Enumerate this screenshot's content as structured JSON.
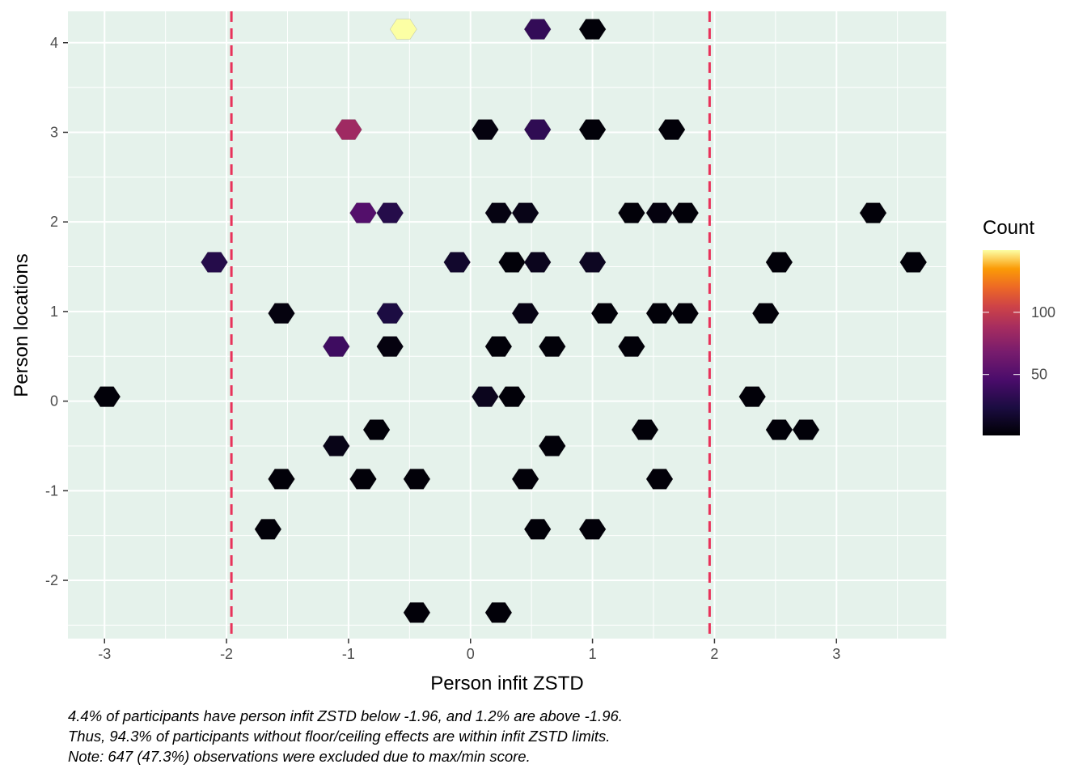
{
  "chart_data": {
    "type": "hexbin",
    "xlabel": "Person infit ZSTD",
    "ylabel": "Person locations",
    "xlim": [
      -3.3,
      3.9
    ],
    "ylim": [
      -2.65,
      4.35
    ],
    "x_ticks": [
      -3,
      -2,
      -1,
      0,
      1,
      2,
      3
    ],
    "y_ticks": [
      -2,
      -1,
      0,
      1,
      2,
      3,
      4
    ],
    "grid": true,
    "background_color": "#e5f2eb",
    "reference_lines": [
      {
        "x": -1.96,
        "style": "dashed",
        "color": "#e8325a"
      },
      {
        "x": 1.96,
        "style": "dashed",
        "color": "#e8325a"
      }
    ],
    "legend": {
      "title": "Count",
      "position": "right",
      "ticks": [
        50,
        100
      ],
      "range": [
        1,
        150
      ],
      "colormap": "inferno"
    },
    "points": [
      {
        "x": -0.55,
        "y": 4.15,
        "count": 150
      },
      {
        "x": 0.55,
        "y": 4.15,
        "count": 35
      },
      {
        "x": 1.0,
        "y": 4.15,
        "count": 3
      },
      {
        "x": -1.0,
        "y": 3.03,
        "count": 85
      },
      {
        "x": 0.12,
        "y": 3.03,
        "count": 5
      },
      {
        "x": 0.55,
        "y": 3.03,
        "count": 33
      },
      {
        "x": 1.0,
        "y": 3.03,
        "count": 3
      },
      {
        "x": 1.65,
        "y": 3.03,
        "count": 3
      },
      {
        "x": -0.88,
        "y": 2.1,
        "count": 50
      },
      {
        "x": -0.66,
        "y": 2.1,
        "count": 28
      },
      {
        "x": 0.23,
        "y": 2.1,
        "count": 6
      },
      {
        "x": 0.45,
        "y": 2.1,
        "count": 8
      },
      {
        "x": 1.32,
        "y": 2.1,
        "count": 3
      },
      {
        "x": 1.55,
        "y": 2.1,
        "count": 5
      },
      {
        "x": 1.76,
        "y": 2.1,
        "count": 3
      },
      {
        "x": 3.3,
        "y": 2.1,
        "count": 3
      },
      {
        "x": -2.1,
        "y": 1.55,
        "count": 28
      },
      {
        "x": -0.11,
        "y": 1.55,
        "count": 16
      },
      {
        "x": 0.34,
        "y": 1.55,
        "count": 3
      },
      {
        "x": 0.55,
        "y": 1.55,
        "count": 10
      },
      {
        "x": 1.0,
        "y": 1.55,
        "count": 12
      },
      {
        "x": 2.53,
        "y": 1.55,
        "count": 3
      },
      {
        "x": 3.63,
        "y": 1.55,
        "count": 3
      },
      {
        "x": -1.55,
        "y": 0.98,
        "count": 5
      },
      {
        "x": -0.66,
        "y": 0.98,
        "count": 24
      },
      {
        "x": 0.45,
        "y": 0.98,
        "count": 7
      },
      {
        "x": 1.1,
        "y": 0.98,
        "count": 3
      },
      {
        "x": 1.55,
        "y": 0.98,
        "count": 3
      },
      {
        "x": 1.76,
        "y": 0.98,
        "count": 3
      },
      {
        "x": 2.42,
        "y": 0.98,
        "count": 3
      },
      {
        "x": -1.1,
        "y": 0.61,
        "count": 40
      },
      {
        "x": -0.66,
        "y": 0.61,
        "count": 5
      },
      {
        "x": 0.23,
        "y": 0.61,
        "count": 3
      },
      {
        "x": 0.67,
        "y": 0.61,
        "count": 3
      },
      {
        "x": 1.32,
        "y": 0.61,
        "count": 3
      },
      {
        "x": -2.98,
        "y": 0.05,
        "count": 3
      },
      {
        "x": 0.12,
        "y": 0.05,
        "count": 10
      },
      {
        "x": 0.34,
        "y": 0.05,
        "count": 3
      },
      {
        "x": 2.31,
        "y": 0.05,
        "count": 3
      },
      {
        "x": -0.77,
        "y": -0.32,
        "count": 3
      },
      {
        "x": 1.43,
        "y": -0.32,
        "count": 3
      },
      {
        "x": 2.53,
        "y": -0.32,
        "count": 3
      },
      {
        "x": 2.75,
        "y": -0.32,
        "count": 3
      },
      {
        "x": -1.1,
        "y": -0.5,
        "count": 8
      },
      {
        "x": 0.67,
        "y": -0.5,
        "count": 3
      },
      {
        "x": -1.55,
        "y": -0.87,
        "count": 3
      },
      {
        "x": -0.88,
        "y": -0.87,
        "count": 3
      },
      {
        "x": -0.44,
        "y": -0.87,
        "count": 3
      },
      {
        "x": 0.45,
        "y": -0.87,
        "count": 3
      },
      {
        "x": 1.55,
        "y": -0.87,
        "count": 3
      },
      {
        "x": -1.66,
        "y": -1.43,
        "count": 3
      },
      {
        "x": 0.55,
        "y": -1.43,
        "count": 3
      },
      {
        "x": 1.0,
        "y": -1.43,
        "count": 3
      },
      {
        "x": -0.44,
        "y": -2.36,
        "count": 3
      },
      {
        "x": 0.23,
        "y": -2.36,
        "count": 3
      }
    ]
  },
  "caption": {
    "line1": "4.4% of participants have person infit ZSTD below -1.96, and 1.2% are above -1.96.",
    "line2": "Thus, 94.3% of participants without floor/ceiling effects are within infit ZSTD limits.",
    "line3": "Note: 647 (47.3%) observations were excluded due to max/min score."
  }
}
